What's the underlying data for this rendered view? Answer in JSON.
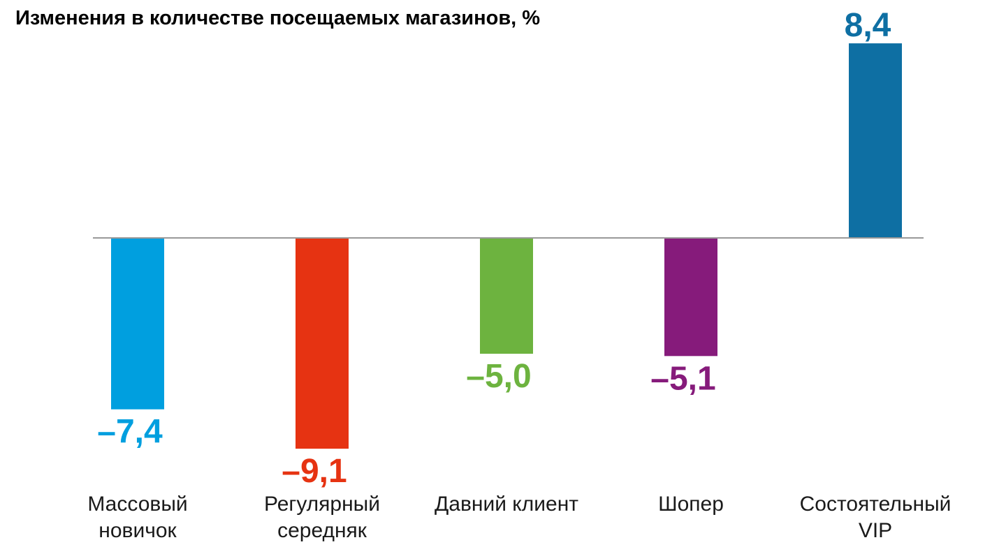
{
  "chart_data": {
    "type": "bar",
    "title": "Изменения в количестве посещаемых магазинов, %",
    "xlabel": "",
    "ylabel": "",
    "ylim": [
      -10,
      8.4
    ],
    "grid": false,
    "categories": [
      [
        "Массовый",
        "новичок"
      ],
      [
        "Регулярный",
        "середняк"
      ],
      [
        "Давний клиент"
      ],
      [
        "Шопер"
      ],
      [
        "Состоятельный",
        "VIP"
      ]
    ],
    "values": [
      -7.4,
      -9.1,
      -5.0,
      -5.1,
      8.4
    ],
    "value_labels": [
      "–7,4",
      "–9,1",
      "–5,0",
      "–5,1",
      "8,4"
    ],
    "colors": [
      "#009fdf",
      "#e63312",
      "#6db33f",
      "#861b7b",
      "#0e6fa3"
    ]
  },
  "baseline_color": "#999999"
}
